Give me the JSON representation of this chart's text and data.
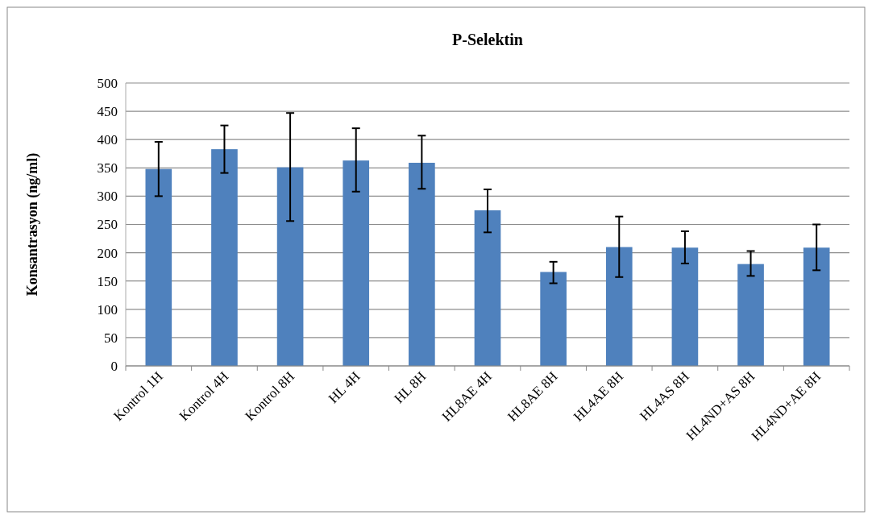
{
  "chart_data": {
    "type": "bar",
    "title": "P-Selektin",
    "ylabel": "Konsantrasyon (ng/ml)",
    "categories": [
      "Kontrol 1H",
      "Kontrol 4H",
      "Kontrol 8H",
      "HL 4H",
      "HL 8H",
      "HL8AE 4H",
      "HL8AE 8H",
      "HL4AE 8H",
      "HL4AS 8H",
      "HL4ND+AS 8H",
      "HL4ND+AE 8H"
    ],
    "values": [
      348,
      383,
      351,
      363,
      359,
      275,
      166,
      210,
      209,
      180,
      209
    ],
    "errors": [
      [
        300,
        396
      ],
      [
        341,
        425
      ],
      [
        256,
        447
      ],
      [
        308,
        420
      ],
      [
        313,
        407
      ],
      [
        236,
        312
      ],
      [
        146,
        184
      ],
      [
        157,
        264
      ],
      [
        181,
        238
      ],
      [
        159,
        203
      ],
      [
        169,
        250
      ]
    ],
    "color": "#4f81bd",
    "ylim": [
      0,
      500
    ],
    "yticks": [
      0,
      50,
      100,
      150,
      200,
      250,
      300,
      350,
      400,
      450,
      500
    ],
    "grid": "y"
  }
}
